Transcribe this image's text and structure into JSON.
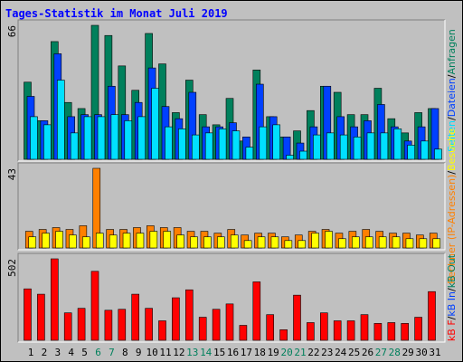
{
  "title": "Tages-Statistik im Monat Juli 2019",
  "chart_data": [
    {
      "type": "bar",
      "ylim": [
        0,
        66
      ],
      "yticks": [
        66
      ],
      "legend_separator": "/",
      "series": [
        {
          "name": "Seiten",
          "color": "#00e0ff",
          "values": [
            21,
            17,
            39,
            13,
            21,
            21,
            22,
            19,
            21,
            35,
            16,
            15,
            12,
            13,
            15,
            14,
            6,
            16,
            17,
            2,
            4,
            12,
            13,
            12,
            11,
            13,
            13,
            15,
            7,
            9,
            5
          ]
        },
        {
          "name": "Dateien",
          "color": "#0040ff",
          "values": [
            31,
            19,
            52,
            21,
            22,
            22,
            36,
            22,
            28,
            45,
            26,
            20,
            33,
            16,
            16,
            18,
            11,
            37,
            21,
            11,
            8,
            16,
            36,
            21,
            16,
            19,
            27,
            16,
            9,
            16,
            25
          ]
        },
        {
          "name": "Anfragen",
          "color": "#00805c",
          "values": [
            38,
            19,
            58,
            28,
            25,
            66,
            61,
            46,
            34,
            62,
            47,
            23,
            39,
            22,
            17,
            30,
            9,
            44,
            21,
            11,
            14,
            24,
            36,
            33,
            22,
            22,
            35,
            20,
            13,
            23,
            25
          ]
        }
      ]
    },
    {
      "type": "bar",
      "ylim": [
        0,
        43
      ],
      "yticks": [
        43
      ],
      "legend_separator": "/",
      "series": [
        {
          "name": "Rechner (IP-Adressen)",
          "color": "#ff8000",
          "values": [
            9,
            10,
            11,
            10,
            12,
            43,
            10,
            10,
            11,
            12,
            11,
            11,
            9,
            9,
            8,
            10,
            7,
            8,
            8,
            6,
            7,
            9,
            10,
            8,
            9,
            10,
            9,
            8,
            8,
            7,
            8
          ]
        },
        {
          "name": "Besuche",
          "color": "#ffff00",
          "values": [
            6,
            8,
            9,
            7,
            6,
            8,
            7,
            8,
            8,
            9,
            9,
            7,
            6,
            6,
            6,
            7,
            4,
            6,
            6,
            4,
            4,
            8,
            9,
            5,
            6,
            6,
            6,
            6,
            5,
            5,
            5
          ]
        }
      ]
    },
    {
      "type": "bar",
      "ylim": [
        0,
        502
      ],
      "yticks": [
        502
      ],
      "legend_separator": "/",
      "categories": [
        "1",
        "2",
        "3",
        "4",
        "5",
        "6",
        "7",
        "8",
        "9",
        "10",
        "11",
        "12",
        "13",
        "14",
        "15",
        "16",
        "17",
        "18",
        "19",
        "20",
        "21",
        "22",
        "23",
        "24",
        "25",
        "26",
        "27",
        "28",
        "29",
        "30",
        "31"
      ],
      "category_colors": [
        "#000000",
        "#000000",
        "#000000",
        "#000000",
        "#000000",
        "#00805c",
        "#00805c",
        "#000000",
        "#000000",
        "#000000",
        "#000000",
        "#000000",
        "#00805c",
        "#00805c",
        "#000000",
        "#000000",
        "#000000",
        "#000000",
        "#000000",
        "#00805c",
        "#00805c",
        "#000000",
        "#000000",
        "#000000",
        "#000000",
        "#000000",
        "#00805c",
        "#00805c",
        "#000000",
        "#000000",
        "#000000"
      ],
      "series": [
        {
          "name": "kB F",
          "color": "#ff0000",
          "values": [
            317,
            284,
            502,
            169,
            197,
            425,
            185,
            191,
            284,
            197,
            120,
            262,
            311,
            142,
            191,
            224,
            92,
            360,
            158,
            65,
            278,
            109,
            169,
            120,
            120,
            158,
            104,
            109,
            104,
            142,
            300
          ]
        },
        {
          "name": "kB In",
          "color": "#0040ff",
          "values": [
            0,
            0,
            0,
            0,
            0,
            0,
            0,
            0,
            0,
            0,
            0,
            0,
            0,
            0,
            0,
            0,
            0,
            0,
            0,
            0,
            0,
            0,
            0,
            0,
            0,
            0,
            0,
            0,
            0,
            0,
            0
          ]
        },
        {
          "name": "kB Out",
          "color": "#00805c",
          "values": [
            0,
            0,
            0,
            0,
            0,
            0,
            0,
            0,
            0,
            0,
            0,
            0,
            0,
            0,
            0,
            0,
            0,
            0,
            0,
            0,
            0,
            0,
            0,
            0,
            0,
            0,
            0,
            0,
            0,
            0,
            0
          ]
        }
      ]
    }
  ]
}
